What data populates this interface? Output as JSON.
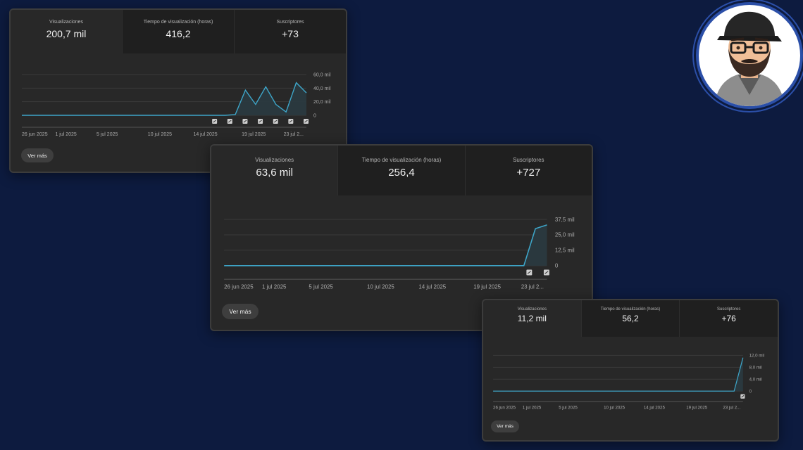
{
  "colors": {
    "background": "#0d1b3f",
    "card": "#282828",
    "line": "#3ea6c9",
    "area": "#2a3a40"
  },
  "cards": [
    {
      "tabs": [
        {
          "label": "Visualizaciones",
          "value": "200,7 mil"
        },
        {
          "label": "Tiempo de visualización (horas)",
          "value": "416,2"
        },
        {
          "label": "Suscriptores",
          "value": "+73"
        }
      ],
      "button_label": "Ver más",
      "chart_data": {
        "type": "area",
        "x_labels": [
          "26 jun 2025",
          "1 jul 2025",
          "5 jul 2025",
          "10 jul 2025",
          "14 jul 2025",
          "19 jul 2025",
          "23 jul 2..."
        ],
        "y_labels": [
          "60,0 mil",
          "40,0 mil",
          "20,0 mil",
          "0"
        ],
        "ylim": [
          0,
          60000
        ],
        "values": [
          0,
          0,
          0,
          0,
          0,
          0,
          0,
          0,
          0,
          0,
          0,
          0,
          0,
          0,
          0,
          0,
          0,
          0,
          0,
          0,
          0,
          1000,
          37000,
          16000,
          42000,
          16000,
          5000,
          48000,
          33000
        ],
        "marker_icons": 7
      }
    },
    {
      "tabs": [
        {
          "label": "Visualizaciones",
          "value": "63,6 mil"
        },
        {
          "label": "Tiempo de visualización (horas)",
          "value": "256,4"
        },
        {
          "label": "Suscriptores",
          "value": "+727"
        }
      ],
      "button_label": "Ver más",
      "chart_data": {
        "type": "area",
        "x_labels": [
          "26 jun 2025",
          "1 jul 2025",
          "5 jul 2025",
          "10 jul 2025",
          "14 jul 2025",
          "19 jul 2025",
          "23 jul 2..."
        ],
        "y_labels": [
          "37,5 mil",
          "25,0 mil",
          "12,5 mil",
          "0"
        ],
        "ylim": [
          0,
          37500
        ],
        "values": [
          0,
          0,
          0,
          0,
          0,
          0,
          0,
          0,
          0,
          0,
          0,
          0,
          0,
          0,
          0,
          0,
          0,
          0,
          0,
          0,
          0,
          0,
          0,
          0,
          0,
          0,
          0,
          30000,
          33000
        ],
        "marker_icons": 2
      }
    },
    {
      "tabs": [
        {
          "label": "Visualizaciones",
          "value": "11,2 mil"
        },
        {
          "label": "Tiempo de visualización (horas)",
          "value": "56,2"
        },
        {
          "label": "Suscriptores",
          "value": "+76"
        }
      ],
      "button_label": "Ver más",
      "chart_data": {
        "type": "area",
        "x_labels": [
          "26 jun 2025",
          "1 jul 2025",
          "5 jul 2025",
          "10 jul 2025",
          "14 jul 2025",
          "19 jul 2025",
          "23 jul 2..."
        ],
        "y_labels": [
          "12,0 mil",
          "8,0 mil",
          "4,0 mil",
          "0"
        ],
        "ylim": [
          0,
          12000
        ],
        "values": [
          0,
          0,
          0,
          0,
          0,
          0,
          0,
          0,
          0,
          0,
          0,
          0,
          0,
          0,
          0,
          0,
          0,
          0,
          0,
          0,
          0,
          0,
          0,
          0,
          0,
          0,
          0,
          0,
          11200
        ],
        "marker_icons": 1
      }
    }
  ],
  "avatar": {
    "icon": "avatar-cartoon-icon"
  }
}
